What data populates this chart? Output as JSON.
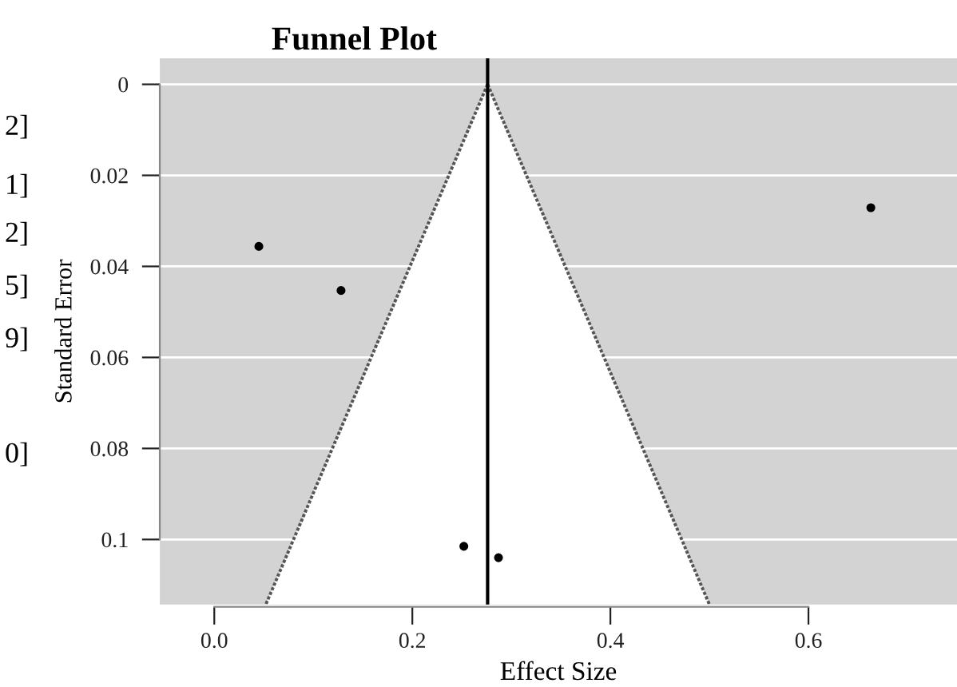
{
  "chart_data": {
    "type": "scatter",
    "title": "Funnel Plot",
    "xlabel": "Effect Size",
    "ylabel": "Standard Error",
    "annotations": [
      "2]",
      "1]",
      "2]",
      "5]",
      "9]",
      "0]"
    ],
    "xlim": [
      -0.055,
      0.75
    ],
    "ylim": [
      0.1143,
      -0.0057
    ],
    "xticks": [
      {
        "value": 0,
        "label": "0.0"
      },
      0.2,
      0.4,
      0.6
    ],
    "yticks": [
      0,
      0.02,
      0.04,
      0.06,
      0.08,
      0.1
    ],
    "grid": "y",
    "series": [
      {
        "type": "line",
        "line_style": "dotted",
        "marker": "none",
        "color": "#555555",
        "x": [
          0.276,
          0.052
        ],
        "values": [
          0,
          0.1143
        ]
      },
      {
        "type": "line",
        "line_style": "dotted",
        "marker": "none",
        "color": "#555555",
        "x": [
          0.276,
          0.5
        ],
        "values": [
          0,
          0.1143
        ]
      },
      {
        "type": "scatter",
        "marker": "circle",
        "color": "#000000",
        "x": [
          0.045,
          0.128,
          0.663,
          0.252,
          0.287
        ],
        "values": [
          0.0356,
          0.0453,
          0.0271,
          0.1015,
          0.104
        ]
      }
    ],
    "ref_lines": [
      {
        "axis": "x",
        "value": 0.276,
        "color": "#000000"
      }
    ]
  }
}
